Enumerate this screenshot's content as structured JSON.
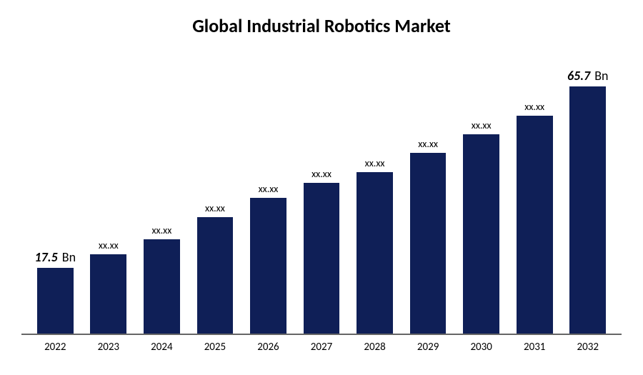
{
  "chart": {
    "type": "bar",
    "title": "Global Industrial Robotics Market",
    "title_fontsize": 26,
    "title_fontweight": "bold",
    "title_color": "#000000",
    "background_color": "#ffffff",
    "bar_color": "#0f1f57",
    "axis_line_color": "#666666",
    "categories": [
      "2022",
      "2023",
      "2024",
      "2025",
      "2026",
      "2027",
      "2028",
      "2029",
      "2030",
      "2031",
      "2032"
    ],
    "values": [
      17.5,
      21,
      25,
      31,
      36,
      40,
      43,
      48,
      53,
      58,
      65.7
    ],
    "value_labels": [
      "17.5",
      "xx.xx",
      "xx.xx",
      "xx.xx",
      "xx.xx",
      "xx.xx",
      "xx.xx",
      "xx.xx",
      "xx.xx",
      "xx.xx",
      "65.7"
    ],
    "endpoint_unit": "Bn",
    "endpoint_indices": [
      0,
      10
    ],
    "ymax": 75,
    "bar_width_ratio": 0.68,
    "label_fontsize": 14,
    "endpoint_label_fontsize": 18,
    "tick_fontsize": 15,
    "tick_color": "#000000"
  }
}
